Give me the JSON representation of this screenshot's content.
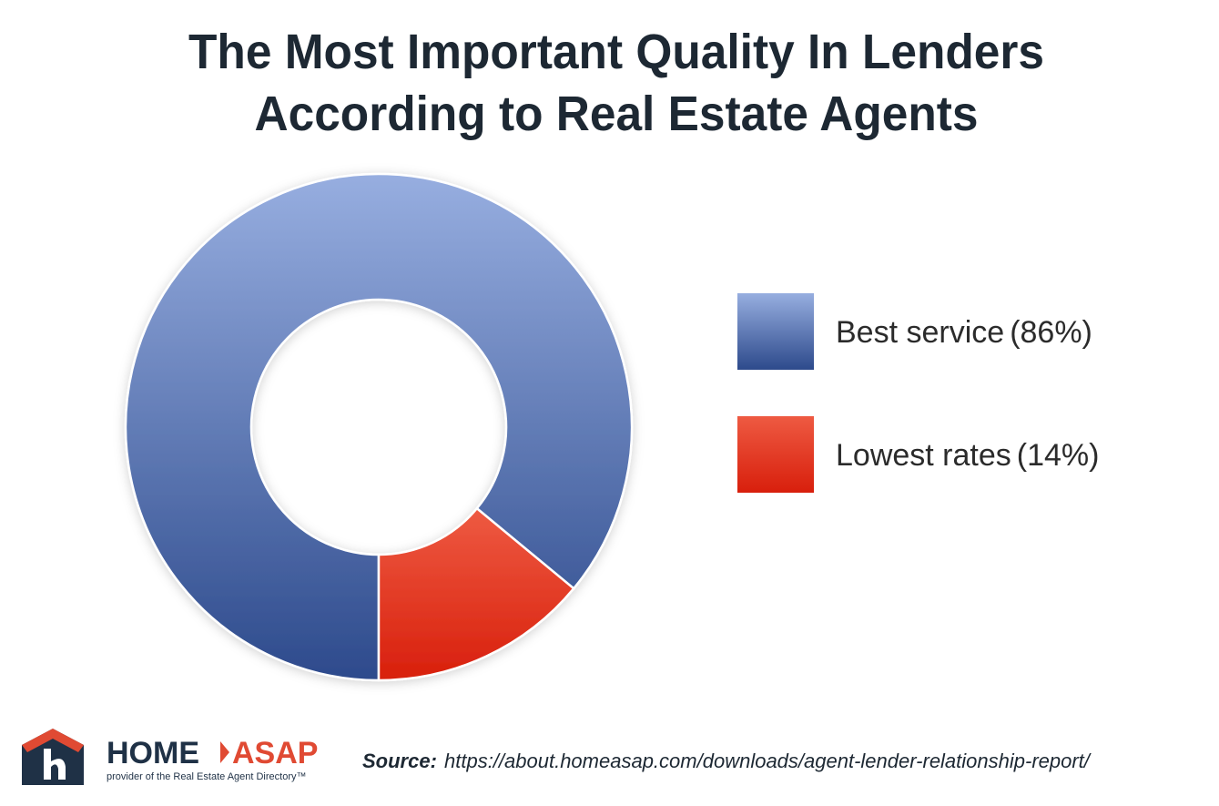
{
  "chart_data": {
    "type": "pie",
    "title": [
      "The Most Important Quality In Lenders",
      "According to Real Estate Agents"
    ],
    "categories": [
      "Best service",
      "Lowest rates"
    ],
    "values": [
      86,
      14
    ],
    "value_labels": [
      "(86%)",
      "(14%)"
    ],
    "colors": [
      [
        "#97aee0",
        "#2d4a8c"
      ],
      [
        "#ee5a42",
        "#d81f0c"
      ]
    ],
    "donut": true,
    "legend": "right",
    "logo": {
      "name": "HOME",
      "brand": "ASAP",
      "tagline": "provider of the Real Estate Agent Directory™"
    },
    "source_label": "Source:",
    "source": "https://about.homeasap.com/downloads/agent-lender-relationship-report/"
  }
}
